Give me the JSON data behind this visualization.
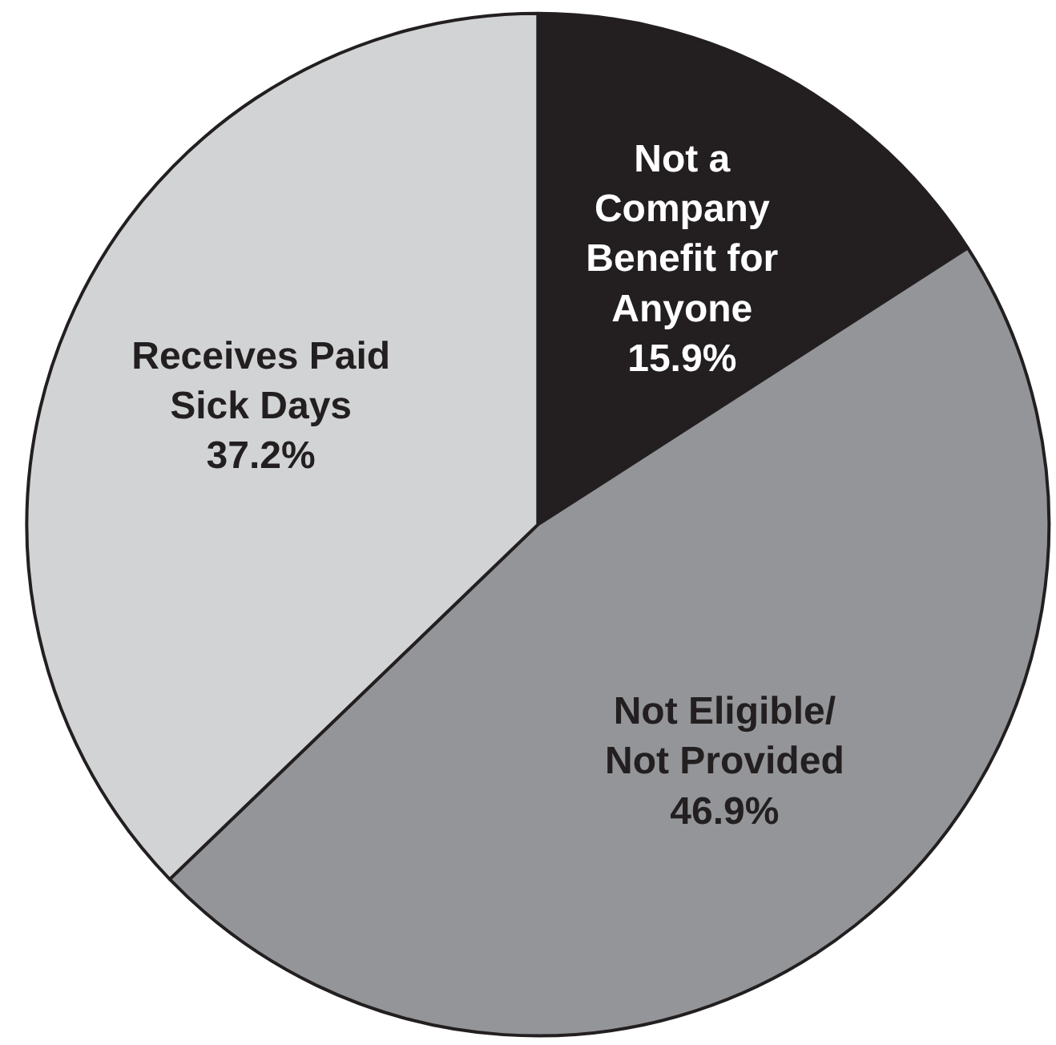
{
  "chart_data": {
    "type": "pie",
    "categories": [
      "Not a\nCompany\nBenefit for\nAnyone",
      "Not Eligible/\nNot Provided",
      "Receives Paid\nSick Days"
    ],
    "values": [
      15.9,
      46.9,
      37.2
    ],
    "colors": [
      "#231f20",
      "#939598",
      "#d1d3d4"
    ],
    "value_labels": [
      "15.9%",
      "46.9%",
      "37.2%"
    ]
  }
}
